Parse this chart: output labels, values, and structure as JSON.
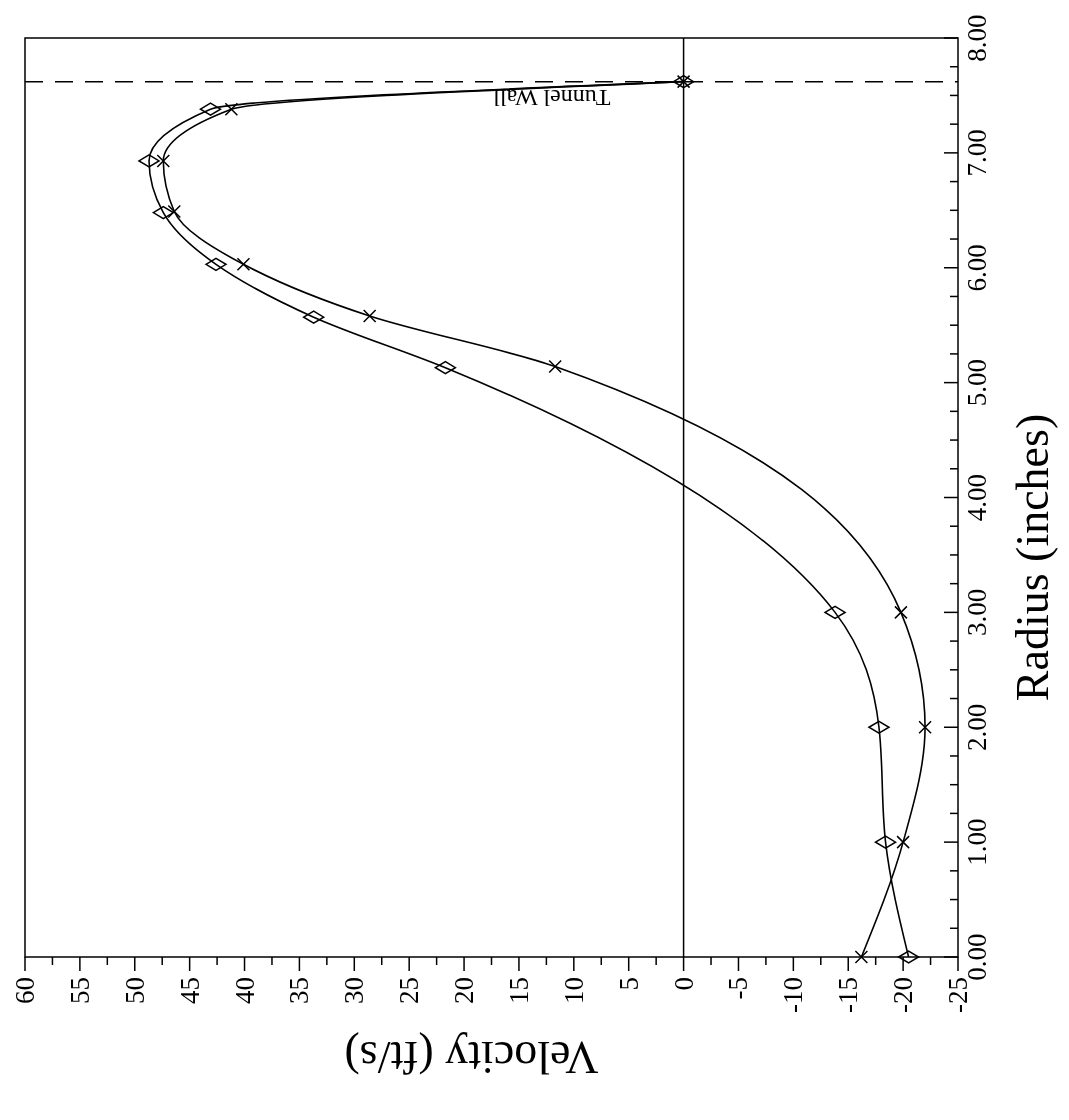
{
  "chart_data": {
    "type": "line",
    "xlabel": "Velocity (ft/s)",
    "ylabel": "Radius (inches)",
    "xlim": [
      60,
      -25
    ],
    "ylim": [
      0,
      8
    ],
    "xticks": [
      60,
      {
        "value": 57.5,
        "label": null
      },
      55,
      {
        "value": 52.5,
        "label": null
      },
      50,
      {
        "value": 47.5,
        "label": null
      },
      45,
      {
        "value": 42.5,
        "label": null
      },
      40,
      {
        "value": 37.5,
        "label": null
      },
      35,
      {
        "value": 32.5,
        "label": null
      },
      30,
      {
        "value": 27.5,
        "label": null
      },
      25,
      {
        "value": 22.5,
        "label": null
      },
      20,
      {
        "value": 17.5,
        "label": null
      },
      15,
      {
        "value": 12.5,
        "label": null
      },
      10,
      {
        "value": 7.5,
        "label": null
      },
      5,
      {
        "value": 2.5,
        "label": null
      },
      0,
      {
        "value": -2.5,
        "label": null
      },
      -5,
      {
        "value": -7.5,
        "label": null
      },
      -10,
      {
        "value": -12.5,
        "label": null
      },
      -15,
      {
        "value": -17.5,
        "label": null
      },
      -20,
      {
        "value": -22.5,
        "label": null
      },
      -25
    ],
    "yticks": [
      {
        "value": 0,
        "label": "0.00"
      },
      {
        "value": 0.25,
        "label": null
      },
      {
        "value": 0.5,
        "label": null
      },
      {
        "value": 0.75,
        "label": null
      },
      {
        "value": 1,
        "label": "1.00"
      },
      {
        "value": 1.25,
        "label": null
      },
      {
        "value": 1.5,
        "label": null
      },
      {
        "value": 1.75,
        "label": null
      },
      {
        "value": 2,
        "label": "2.00"
      },
      {
        "value": 2.25,
        "label": null
      },
      {
        "value": 2.5,
        "label": null
      },
      {
        "value": 2.75,
        "label": null
      },
      {
        "value": 3,
        "label": "3.00"
      },
      {
        "value": 3.25,
        "label": null
      },
      {
        "value": 3.5,
        "label": null
      },
      {
        "value": 3.75,
        "label": null
      },
      {
        "value": 4,
        "label": "4.00"
      },
      {
        "value": 4.25,
        "label": null
      },
      {
        "value": 4.5,
        "label": null
      },
      {
        "value": 4.75,
        "label": null
      },
      {
        "value": 5,
        "label": "5.00"
      },
      {
        "value": 5.25,
        "label": null
      },
      {
        "value": 5.5,
        "label": null
      },
      {
        "value": 5.75,
        "label": null
      },
      {
        "value": 6,
        "label": "6.00"
      },
      {
        "value": 6.25,
        "label": null
      },
      {
        "value": 6.5,
        "label": null
      },
      {
        "value": 6.75,
        "label": null
      },
      {
        "value": 7,
        "label": "7.00"
      },
      {
        "value": 7.25,
        "label": null
      },
      {
        "value": 7.5,
        "label": null
      },
      {
        "value": 7.75,
        "label": null
      },
      {
        "value": 8,
        "label": "8.00"
      }
    ],
    "series": [
      {
        "color": "#000000",
        "marker": "diamond",
        "x": [
          -20.5,
          -18.4,
          -17.8,
          -13.8,
          21.7,
          33.7,
          42.6,
          47.4,
          48.7,
          43.1,
          0
        ],
        "values": [
          0,
          1,
          2,
          3,
          5.13,
          5.57,
          6.03,
          6.48,
          6.93,
          7.38,
          7.62
        ]
      },
      {
        "color": "#000000",
        "marker": "cross",
        "x": [
          -16.2,
          -20,
          -22,
          -19.8,
          11.7,
          28.6,
          40.1,
          46.4,
          47.4,
          41.2,
          0
        ],
        "values": [
          0,
          1,
          2,
          3,
          5.14,
          5.58,
          6.03,
          6.49,
          6.93,
          7.38,
          7.62
        ]
      }
    ],
    "ref_lines": [
      {
        "axis": "x",
        "value": 0,
        "line_style": "solid",
        "color": "#000000"
      },
      {
        "axis": "y",
        "value": 7.62,
        "label": "Tunnel Wall",
        "line_style": "dashed",
        "color": "#000000"
      }
    ]
  }
}
